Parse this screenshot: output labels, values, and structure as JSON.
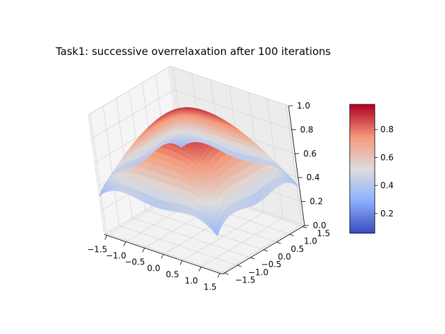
{
  "chart_data": {
    "type": "surface",
    "title": "Task1: successive overrelaxation after 100 iterations",
    "xlabel": "",
    "ylabel": "",
    "zlabel": "",
    "x_range": [
      -1.5708,
      1.5708
    ],
    "y_range": [
      -1.5708,
      1.5708
    ],
    "z_range": [
      0.0,
      1.0
    ],
    "x_ticks": [
      "−1.5",
      "−1.0",
      "−0.5",
      "0.0",
      "0.5",
      "1.0",
      "1.5"
    ],
    "y_ticks": [
      "−1.5",
      "−1.0",
      "−0.5",
      "0.0",
      "0.5",
      "1.0",
      "1.5"
    ],
    "z_ticks": [
      "0.0",
      "0.2",
      "0.4",
      "0.6",
      "0.8",
      "1.0"
    ],
    "x_tick_values": [
      -1.5,
      -1.0,
      -0.5,
      0.0,
      0.5,
      1.0,
      1.5
    ],
    "y_tick_values": [
      -1.5,
      -1.0,
      -0.5,
      0.0,
      0.5,
      1.0,
      1.5
    ],
    "z_tick_values": [
      0.0,
      0.2,
      0.4,
      0.6,
      0.8,
      1.0
    ],
    "z_min": 0.06,
    "z_max": 0.98,
    "grid": true,
    "corner_values": {
      "min": 0.06
    },
    "edge_midpoint_values": {
      "max": 0.98
    },
    "center_value": 0.72,
    "colormap": "coolwarm",
    "colorbar": {
      "range": [
        0.06,
        0.98
      ],
      "ticks": [
        "0.2",
        "0.4",
        "0.6",
        "0.8"
      ],
      "tick_values": [
        0.2,
        0.4,
        0.6,
        0.8
      ],
      "location": "right"
    }
  }
}
